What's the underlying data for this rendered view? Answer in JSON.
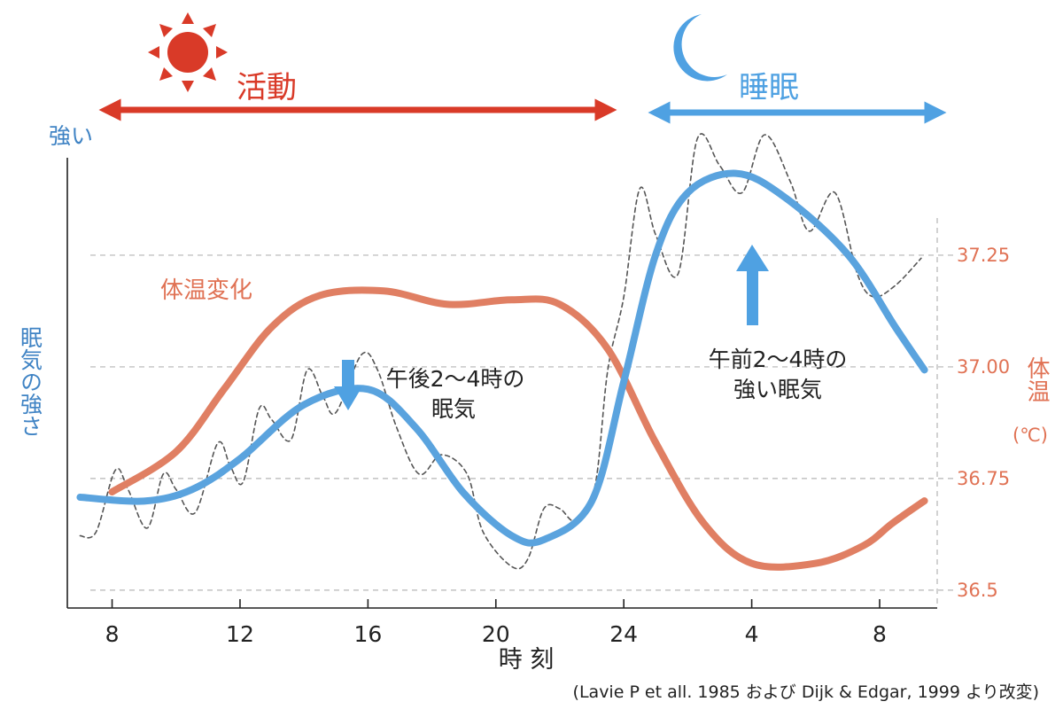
{
  "colors": {
    "activity": "#d93a28",
    "sleep": "#4fa1e2",
    "sleepiness": "#5aa3de",
    "temperature": "#e07f63",
    "axis": "#222222",
    "grid": "#b5b5b5",
    "tick_label_right": "#e07254"
  },
  "header": {
    "activity_label": "活動",
    "sleep_label": "睡眠",
    "activity_icon": "sun-icon",
    "sleep_icon": "moon-icon"
  },
  "chart_data": {
    "type": "line",
    "x_hours": [
      7,
      8,
      9,
      10,
      11,
      12,
      13,
      14,
      15,
      16,
      17,
      18,
      19,
      20,
      21,
      22,
      23,
      24,
      25,
      26,
      27,
      28,
      29,
      30,
      31,
      32,
      33
    ],
    "xlim": [
      6.6,
      33.8
    ],
    "xticks": [
      {
        "hour": 8,
        "label": "8"
      },
      {
        "hour": 12,
        "label": "12"
      },
      {
        "hour": 16,
        "label": "16"
      },
      {
        "hour": 20,
        "label": "20"
      },
      {
        "hour": 24,
        "label": "24"
      },
      {
        "hour": 28,
        "label": "4"
      },
      {
        "hour": 32,
        "label": "8"
      }
    ],
    "xlabel": "時 刻",
    "left_axis": {
      "top_label": "強い",
      "label": "眠気の強さ"
    },
    "right_axis": {
      "label_main": "体温",
      "label_unit": "(℃)",
      "ylim": [
        36.46,
        37.5
      ],
      "ticks": [
        {
          "value": 37.25,
          "label": "37.25"
        },
        {
          "value": 37.0,
          "label": "37.00"
        },
        {
          "value": 36.75,
          "label": "36.75"
        },
        {
          "value": 36.5,
          "label": "36.5"
        }
      ]
    },
    "series": [
      {
        "name": "体温変化",
        "axis": "right",
        "points": [
          [
            8.0,
            36.72
          ],
          [
            10.0,
            36.81
          ],
          [
            11.5,
            36.95
          ],
          [
            13.0,
            37.09
          ],
          [
            14.5,
            37.16
          ],
          [
            16.5,
            37.17
          ],
          [
            18.5,
            37.14
          ],
          [
            20.5,
            37.15
          ],
          [
            22.0,
            37.14
          ],
          [
            23.5,
            37.04
          ],
          [
            25.0,
            36.83
          ],
          [
            26.5,
            36.65
          ],
          [
            28.0,
            36.56
          ],
          [
            30.0,
            36.56
          ],
          [
            31.5,
            36.6
          ],
          [
            32.4,
            36.65
          ],
          [
            33.4,
            36.7
          ]
        ]
      },
      {
        "name": "眠気の強さ",
        "axis": "left",
        "points": [
          [
            7.0,
            0.2
          ],
          [
            9.0,
            0.19
          ],
          [
            10.5,
            0.22
          ],
          [
            12.0,
            0.3
          ],
          [
            14.0,
            0.44
          ],
          [
            16.0,
            0.48
          ],
          [
            17.5,
            0.38
          ],
          [
            19.0,
            0.21
          ],
          [
            20.5,
            0.1
          ],
          [
            21.5,
            0.09
          ],
          [
            23.0,
            0.19
          ],
          [
            24.0,
            0.5
          ],
          [
            25.0,
            0.83
          ],
          [
            26.0,
            0.99
          ],
          [
            27.5,
            1.04
          ],
          [
            29.0,
            0.98
          ],
          [
            31.0,
            0.83
          ],
          [
            32.5,
            0.64
          ],
          [
            33.4,
            0.53
          ]
        ]
      },
      {
        "name": "sleepiness-measured",
        "axis": "left",
        "points": [
          [
            7.0,
            0.1
          ],
          [
            7.5,
            0.11
          ],
          [
            8.1,
            0.27
          ],
          [
            8.5,
            0.22
          ],
          [
            9.1,
            0.12
          ],
          [
            9.6,
            0.26
          ],
          [
            10.0,
            0.22
          ],
          [
            10.6,
            0.16
          ],
          [
            11.3,
            0.34
          ],
          [
            11.7,
            0.28
          ],
          [
            12.1,
            0.24
          ],
          [
            12.6,
            0.43
          ],
          [
            13.0,
            0.4
          ],
          [
            13.6,
            0.35
          ],
          [
            14.1,
            0.53
          ],
          [
            14.6,
            0.46
          ],
          [
            15.0,
            0.42
          ],
          [
            15.8,
            0.57
          ],
          [
            16.3,
            0.53
          ],
          [
            16.9,
            0.38
          ],
          [
            17.6,
            0.26
          ],
          [
            18.3,
            0.31
          ],
          [
            19.1,
            0.26
          ],
          [
            19.6,
            0.11
          ],
          [
            20.5,
            0.02
          ],
          [
            21.0,
            0.04
          ],
          [
            21.5,
            0.17
          ],
          [
            22.0,
            0.17
          ],
          [
            22.5,
            0.14
          ],
          [
            23.1,
            0.23
          ],
          [
            23.5,
            0.53
          ],
          [
            24.0,
            0.72
          ],
          [
            24.5,
            1.0
          ],
          [
            25.0,
            0.88
          ],
          [
            25.7,
            0.78
          ],
          [
            26.3,
            1.13
          ],
          [
            27.0,
            1.06
          ],
          [
            27.7,
            0.99
          ],
          [
            28.4,
            1.14
          ],
          [
            29.2,
            1.02
          ],
          [
            29.8,
            0.89
          ],
          [
            30.6,
            0.99
          ],
          [
            31.3,
            0.78
          ],
          [
            31.8,
            0.72
          ],
          [
            32.5,
            0.75
          ],
          [
            33.3,
            0.82
          ]
        ]
      }
    ]
  },
  "annotations": {
    "temperature_label": "体温変化",
    "afternoon_dip": {
      "line1": "午後2〜4時の",
      "line2": "眠気"
    },
    "night_peak": {
      "line1": "午前2〜4時の",
      "line2": "強い眠気"
    }
  },
  "source": "(Lavie P et all. 1985 および Dijk & Edgar, 1999 より改変)"
}
